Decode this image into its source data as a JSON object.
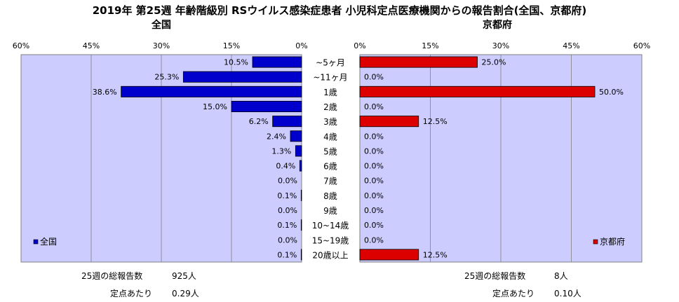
{
  "title": "2019年 第25週 年齢階級別 RSウイルス感染症患者 小児科定点医療機関からの報告割合(全国、京都府)",
  "left_panel_title": "全国",
  "right_panel_title": "京都府",
  "stats": {
    "left": {
      "total_label": "25週の総報告数",
      "total_value": "925人",
      "per_label": "定点あたり",
      "per_value": "0.29人"
    },
    "right": {
      "total_label": "25週の総報告数",
      "total_value": "8人",
      "per_label": "定点あたり",
      "per_value": "0.10人"
    }
  },
  "colors": {
    "national": "#0000cc",
    "kyoto": "#dd0000",
    "plot_bg": "#ccccff"
  },
  "chart_data": [
    {
      "type": "bar",
      "orientation": "horizontal",
      "direction": "right-to-left",
      "categories": [
        "~5ヶ月",
        "~11ヶ月",
        "1歳",
        "2歳",
        "3歳",
        "4歳",
        "5歳",
        "6歳",
        "7歳",
        "8歳",
        "9歳",
        "10~14歳",
        "15~19歳",
        "20歳以上"
      ],
      "series": [
        {
          "name": "全国",
          "values": [
            10.5,
            25.3,
            38.6,
            15.0,
            6.2,
            2.4,
            1.3,
            0.4,
            0.0,
            0.1,
            0.0,
            0.1,
            0.0,
            0.1
          ]
        }
      ],
      "value_labels": [
        "10.5%",
        "25.3%",
        "38.6%",
        "15.0%",
        "6.2%",
        "2.4%",
        "1.3%",
        "0.4%",
        "0.0%",
        "0.1%",
        "0.0%",
        "0.1%",
        "0.0%",
        "0.1%"
      ],
      "xlim": [
        0,
        60
      ],
      "ticks": [
        "60%",
        "45%",
        "30%",
        "15%",
        "0%"
      ],
      "legend": "bottom-left",
      "grid": true
    },
    {
      "type": "bar",
      "orientation": "horizontal",
      "direction": "left-to-right",
      "categories": [
        "~5ヶ月",
        "~11ヶ月",
        "1歳",
        "2歳",
        "3歳",
        "4歳",
        "5歳",
        "6歳",
        "7歳",
        "8歳",
        "9歳",
        "10~14歳",
        "15~19歳",
        "20歳以上"
      ],
      "series": [
        {
          "name": "京都府",
          "values": [
            25.0,
            0.0,
            50.0,
            0.0,
            12.5,
            0.0,
            0.0,
            0.0,
            0.0,
            0.0,
            0.0,
            0.0,
            0.0,
            12.5
          ]
        }
      ],
      "value_labels": [
        "25.0%",
        "0.0%",
        "50.0%",
        "0.0%",
        "12.5%",
        "0.0%",
        "0.0%",
        "0.0%",
        "0.0%",
        "0.0%",
        "0.0%",
        "0.0%",
        "0.0%",
        "12.5%"
      ],
      "xlim": [
        0,
        60
      ],
      "ticks": [
        "0%",
        "15%",
        "30%",
        "45%",
        "60%"
      ],
      "legend": "bottom-right",
      "grid": true
    }
  ]
}
